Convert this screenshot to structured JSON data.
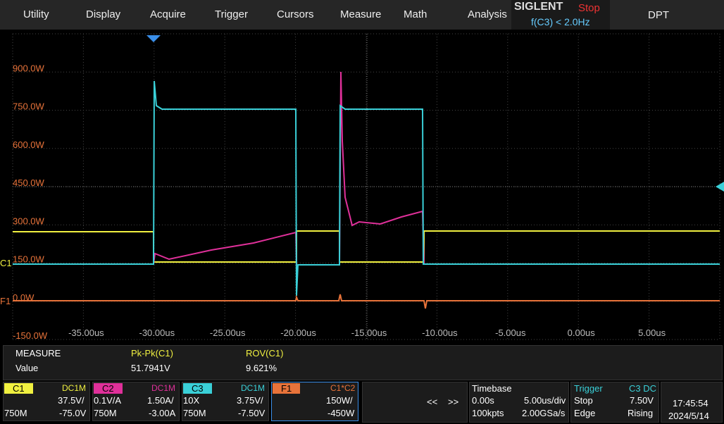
{
  "menu": {
    "items": [
      "Utility",
      "Display",
      "Acquire",
      "Trigger",
      "Cursors",
      "Measure",
      "Math",
      "Analysis"
    ],
    "brand": "SIGLENT",
    "status": "Stop",
    "trigger_freq": "f(C3) < 2.0Hz",
    "mode": "DPT"
  },
  "screen": {
    "y_labels": [
      "900.0W",
      "750.0W",
      "600.0W",
      "450.0W",
      "300.0W",
      "150.0W",
      "0.0W",
      "-150.0W"
    ],
    "x_labels": [
      "-35.00us",
      "-30.00us",
      "-25.00us",
      "-20.00us",
      "-15.00us",
      "-10.00us",
      "-5.00us",
      "0.00us",
      "5.00us"
    ],
    "markers": [
      "C1",
      "F1"
    ]
  },
  "measure": {
    "title": "MEASURE",
    "row_label": "Value",
    "columns": [
      {
        "name": "Pk-Pk(C1)",
        "value": "51.7941V"
      },
      {
        "name": "ROV(C1)",
        "value": "9.621%"
      }
    ]
  },
  "channels": [
    {
      "label": "C1",
      "coupling": "DC1M",
      "probe": null,
      "scale": "37.5V/",
      "bandwidth": "750M",
      "offset": "-75.0V"
    },
    {
      "label": "C2",
      "coupling": "DC1M",
      "probe": "0.1V/A",
      "scale": "1.50A/",
      "bandwidth": "750M",
      "offset": "-3.00A"
    },
    {
      "label": "C3",
      "coupling": "DC1M",
      "probe": "10X",
      "scale": "3.75V/",
      "bandwidth": "750M",
      "offset": "-7.50V"
    },
    {
      "label": "F1",
      "coupling": "C1*C2",
      "probe": null,
      "scale": "150W/",
      "bandwidth": null,
      "offset": "-450W"
    }
  ],
  "navigation": [
    "<<",
    ">>"
  ],
  "timebase": {
    "title": "Timebase",
    "delay": "0.00s",
    "scale": "5.00us/div",
    "memory": "100kpts",
    "rate": "2.00GSa/s"
  },
  "trigger": {
    "title": "Trigger",
    "source": "C3 DC",
    "state": "Stop",
    "level": "7.50V",
    "type": "Edge",
    "slope": "Rising"
  },
  "clock": {
    "time": "17:45:54",
    "date": "2024/5/14"
  }
}
